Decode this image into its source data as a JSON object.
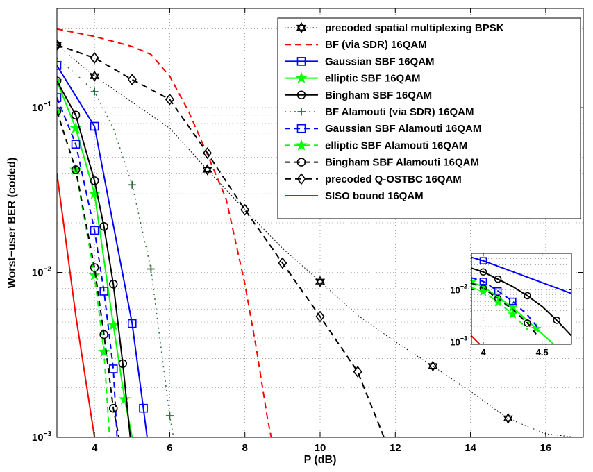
{
  "chart_data": [
    {
      "type": "line",
      "title": "",
      "xlabel": "P (dB)",
      "ylabel": "Worst−user BER (coded)",
      "xlim": [
        3,
        17
      ],
      "ylim": [
        0.001,
        0.4
      ],
      "yscale": "log",
      "grid": true,
      "legend_position": "top-right",
      "x_ticks": [
        {
          "value": 4,
          "label": "4"
        },
        {
          "value": 6,
          "label": "6"
        },
        {
          "value": 8,
          "label": "8"
        },
        {
          "value": 10,
          "label": "10"
        },
        {
          "value": 12,
          "label": "12"
        },
        {
          "value": 14,
          "label": "14"
        },
        {
          "value": 16,
          "label": "16"
        }
      ],
      "y_ticks": [
        {
          "value": 0.001,
          "base": "10",
          "exp": "−3"
        },
        {
          "value": 0.01,
          "base": "10",
          "exp": "−2"
        },
        {
          "value": 0.1,
          "base": "10",
          "exp": "−1"
        }
      ],
      "series": [
        {
          "name": "precoded spatial multiplexing BPSK",
          "color": "#000000",
          "dash": "1.5,3",
          "marker": "hexagram",
          "marker_color": "#000000",
          "line_width": 1,
          "x": [
            3,
            4,
            5,
            6,
            7,
            8,
            9,
            10,
            11,
            12,
            13,
            14,
            15,
            16,
            16.8
          ],
          "y": [
            0.24,
            0.155,
            0.108,
            0.075,
            0.042,
            0.024,
            0.014,
            0.0088,
            0.0055,
            0.0038,
            0.0027,
            0.0019,
            0.0013,
            0.00105,
            0.001
          ],
          "marker_x": [
            3,
            4,
            7,
            10,
            13,
            15
          ]
        },
        {
          "name": "BF (via SDR) 16QAM",
          "color": "#ff0000",
          "dash": "9,6",
          "marker": "none",
          "line_width": 2,
          "x": [
            3,
            4,
            5,
            5.5,
            6,
            6.5,
            7,
            7.5,
            8,
            8.3,
            8.6,
            8.7
          ],
          "y": [
            0.3,
            0.27,
            0.235,
            0.21,
            0.155,
            0.095,
            0.052,
            0.028,
            0.0085,
            0.0035,
            0.0013,
            0.001
          ]
        },
        {
          "name": "Gaussian SBF 16QAM",
          "color": "#0000ff",
          "dash": "",
          "marker": "square",
          "marker_color": "#0000ff",
          "line_width": 2,
          "x": [
            3,
            4,
            5,
            5.3,
            5.4
          ],
          "y": [
            0.18,
            0.077,
            0.0049,
            0.0015,
            0.001
          ]
        },
        {
          "name": "elliptic SBF 16QAM",
          "color": "#00ff00",
          "dash": "",
          "marker": "star5",
          "marker_color": "#00ff00",
          "line_width": 2,
          "x": [
            3,
            3.5,
            4,
            4.5,
            4.8,
            5.0
          ],
          "y": [
            0.145,
            0.075,
            0.03,
            0.0048,
            0.0017,
            0.001
          ]
        },
        {
          "name": "Bingham SBF 16QAM",
          "color": "#000000",
          "dash": "",
          "marker": "circle",
          "marker_color": "#000000",
          "line_width": 2,
          "x": [
            3,
            3.5,
            4,
            4.25,
            4.5,
            4.75,
            4.95
          ],
          "y": [
            0.145,
            0.09,
            0.036,
            0.019,
            0.0085,
            0.0028,
            0.001
          ]
        },
        {
          "name": "BF Alamouti (via SDR) 16QAM",
          "color": "#2e6b3a",
          "dash": "2,5",
          "marker": "plus",
          "marker_color": "#2e6b3a",
          "line_width": 1.5,
          "x": [
            3,
            3.5,
            4,
            4.5,
            5,
            5.5,
            6,
            6.1
          ],
          "y": [
            0.2,
            0.16,
            0.125,
            0.075,
            0.034,
            0.0105,
            0.00135,
            0.001
          ],
          "marker_x": [
            4,
            5,
            5.5,
            6
          ]
        },
        {
          "name": "Gaussian SBF Alamouti 16QAM",
          "color": "#0000ff",
          "dash": "8,6",
          "marker": "square",
          "marker_color": "#0000ff",
          "line_width": 2,
          "x": [
            3,
            3.5,
            4,
            4.25,
            4.5,
            4.6
          ],
          "y": [
            0.115,
            0.06,
            0.018,
            0.0077,
            0.0026,
            0.001
          ]
        },
        {
          "name": "elliptic SBF Alamouti 16QAM",
          "color": "#00ff00",
          "dash": "8,6",
          "marker": "star5",
          "marker_color": "#00ff00",
          "line_width": 2,
          "x": [
            3,
            3.5,
            4,
            4.25,
            4.4
          ],
          "y": [
            0.095,
            0.042,
            0.0096,
            0.0033,
            0.001
          ]
        },
        {
          "name": "Bingham SBF Alamouti 16QAM",
          "color": "#000000",
          "dash": "8,6",
          "marker": "circle",
          "marker_color": "#000000",
          "line_width": 2,
          "x": [
            3,
            3.5,
            4,
            4.25,
            4.5,
            4.65
          ],
          "y": [
            0.095,
            0.042,
            0.0107,
            0.0042,
            0.0015,
            0.001
          ]
        },
        {
          "name": "precoded Q-OSTBC 16QAM",
          "color": "#000000",
          "dash": "9,6",
          "marker": "diamond",
          "marker_color": "#000000",
          "line_width": 2,
          "x": [
            3,
            4,
            5,
            6,
            7,
            8,
            9,
            10,
            11,
            11.7
          ],
          "y": [
            0.24,
            0.2,
            0.148,
            0.112,
            0.053,
            0.024,
            0.0114,
            0.0054,
            0.0025,
            0.001
          ]
        },
        {
          "name": "SISO bound 16QAM",
          "color": "#ff0000",
          "dash": "",
          "marker": "none",
          "line_width": 2,
          "x": [
            3,
            3.5,
            4.0
          ],
          "y": [
            0.04,
            0.0055,
            0.001
          ]
        }
      ]
    },
    {
      "type": "line",
      "title": "",
      "xlabel": "",
      "ylabel": "",
      "xlim": [
        3.9,
        4.75
      ],
      "ylim": [
        0.0009,
        0.05
      ],
      "yscale": "log",
      "grid": true,
      "x_ticks": [
        {
          "value": 4,
          "label": "4"
        },
        {
          "value": 4.5,
          "label": "4.5"
        }
      ],
      "y_ticks": [
        {
          "value": 0.001,
          "base": "10",
          "exp": "−3"
        },
        {
          "value": 0.01,
          "base": "10",
          "exp": "−2"
        }
      ],
      "series": [
        {
          "ref": "Gaussian SBF 16QAM",
          "color": "#0000ff",
          "dash": "",
          "marker": "square",
          "line_width": 2,
          "x": [
            3.9,
            4.0,
            4.75
          ],
          "y": [
            0.042,
            0.036,
            0.0085
          ],
          "marker_x": [
            4.0
          ]
        },
        {
          "ref": "Bingham SBF 16QAM",
          "color": "#000000",
          "dash": "",
          "marker": "circle",
          "line_width": 2,
          "x": [
            3.9,
            4.0,
            4.125,
            4.25,
            4.375,
            4.5,
            4.625,
            4.75
          ],
          "y": [
            0.026,
            0.022,
            0.016,
            0.0115,
            0.0077,
            0.0048,
            0.0026,
            0.0013
          ],
          "marker_x": [
            4.0,
            4.125,
            4.375,
            4.625
          ]
        },
        {
          "ref": "elliptic SBF 16QAM",
          "color": "#00ff00",
          "dash": "",
          "marker": "star5",
          "line_width": 2,
          "x": [
            3.9,
            4.0,
            4.25,
            4.45,
            4.6
          ],
          "y": [
            0.014,
            0.0115,
            0.0046,
            0.0018,
            0.0009
          ]
        },
        {
          "ref": "Gaussian SBF Alamouti 16QAM",
          "color": "#0000ff",
          "dash": "8,6",
          "marker": "square",
          "line_width": 2,
          "x": [
            3.9,
            4.0,
            4.125,
            4.25,
            4.375,
            4.47
          ],
          "y": [
            0.017,
            0.0145,
            0.0095,
            0.006,
            0.0033,
            0.0018
          ],
          "marker_x": [
            4.0,
            4.125,
            4.25
          ]
        },
        {
          "ref": "Bingham SBF Alamouti 16QAM",
          "color": "#000000",
          "dash": "8,6",
          "marker": "circle",
          "line_width": 2,
          "x": [
            3.9,
            4.0,
            4.125,
            4.25,
            4.375,
            4.45
          ],
          "y": [
            0.0135,
            0.0107,
            0.0068,
            0.0042,
            0.0023,
            0.0014
          ],
          "marker_x": [
            4.0,
            4.125,
            4.375
          ]
        },
        {
          "ref": "elliptic SBF Alamouti 16QAM",
          "color": "#00ff00",
          "dash": "8,6",
          "marker": "star5",
          "line_width": 2,
          "x": [
            3.9,
            4.0,
            4.125,
            4.25,
            4.38
          ],
          "y": [
            0.011,
            0.0092,
            0.0058,
            0.0034,
            0.0017
          ],
          "marker_x": [
            4.0,
            4.125,
            4.25
          ]
        },
        {
          "ref": "SISO bound 16QAM",
          "color": "#ff0000",
          "dash": "",
          "marker": "none",
          "line_width": 2,
          "x": [
            3.9,
            3.97
          ],
          "y": [
            0.0013,
            0.0009
          ]
        }
      ]
    }
  ]
}
